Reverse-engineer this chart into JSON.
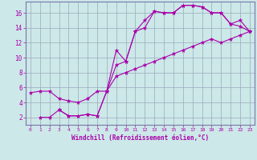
{
  "xlabel": "Windchill (Refroidissement éolien,°C)",
  "bg_color": "#cce8e8",
  "line_color": "#aa00aa",
  "grid_color": "#99aabb",
  "xlim": [
    -0.5,
    23.5
  ],
  "ylim": [
    1.0,
    17.5
  ],
  "xticks": [
    0,
    1,
    2,
    3,
    4,
    5,
    6,
    7,
    8,
    9,
    10,
    11,
    12,
    13,
    14,
    15,
    16,
    17,
    18,
    19,
    20,
    21,
    22,
    23
  ],
  "yticks": [
    2,
    4,
    6,
    8,
    10,
    12,
    14,
    16
  ],
  "series1_x": [
    1,
    2,
    3,
    4,
    5,
    6,
    7,
    8,
    9,
    10,
    11,
    12,
    13,
    14,
    15,
    16,
    17,
    18,
    19,
    20,
    21,
    22,
    23
  ],
  "series1_y": [
    2.0,
    2.0,
    3.0,
    2.2,
    2.2,
    2.4,
    2.2,
    5.5,
    11.0,
    9.5,
    13.5,
    15.0,
    16.2,
    16.0,
    16.0,
    17.0,
    17.0,
    16.8,
    16.0,
    16.0,
    14.5,
    15.0,
    13.5
  ],
  "series2_x": [
    0,
    1,
    2,
    3,
    4,
    5,
    6,
    7,
    8,
    9,
    10,
    11,
    12,
    13,
    14,
    15,
    16,
    17,
    18,
    19,
    20,
    21,
    22,
    23
  ],
  "series2_y": [
    5.3,
    5.5,
    5.5,
    4.5,
    4.2,
    4.0,
    4.5,
    5.5,
    5.5,
    7.5,
    8.0,
    8.5,
    9.0,
    9.5,
    10.0,
    10.5,
    11.0,
    11.5,
    12.0,
    12.5,
    12.0,
    12.5,
    13.0,
    13.5
  ],
  "series3_x": [
    3,
    4,
    5,
    6,
    7,
    8,
    9,
    10,
    11,
    12,
    13,
    14,
    15,
    16,
    17,
    18,
    19,
    20,
    21,
    22,
    23
  ],
  "series3_y": [
    3.0,
    2.2,
    2.2,
    2.4,
    2.2,
    5.5,
    9.0,
    9.5,
    13.5,
    14.0,
    16.2,
    16.0,
    16.0,
    17.0,
    17.0,
    16.8,
    16.0,
    16.0,
    14.5,
    14.2,
    13.5
  ]
}
